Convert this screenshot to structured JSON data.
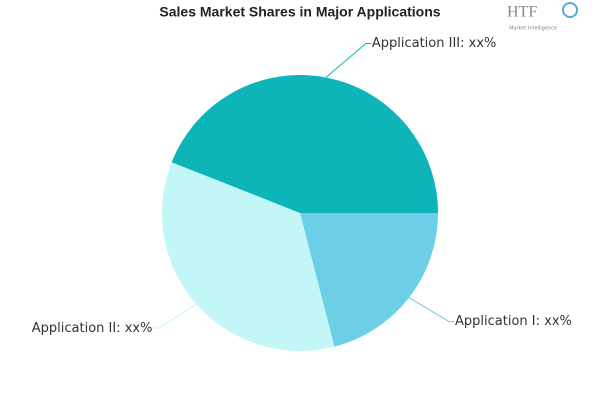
{
  "chart_data": {
    "type": "pie",
    "title": "Sales Market Shares in Major Applications",
    "logo": "HTF",
    "logo_subtitle": "Market Intelligence",
    "categories": [
      "Application I: xx%",
      "Application II: xx%",
      "Application III: xx%"
    ],
    "values": [
      21,
      35,
      44
    ],
    "colors": [
      "#6dcfe6",
      "#c3f6f7",
      "#0db5b9"
    ]
  }
}
